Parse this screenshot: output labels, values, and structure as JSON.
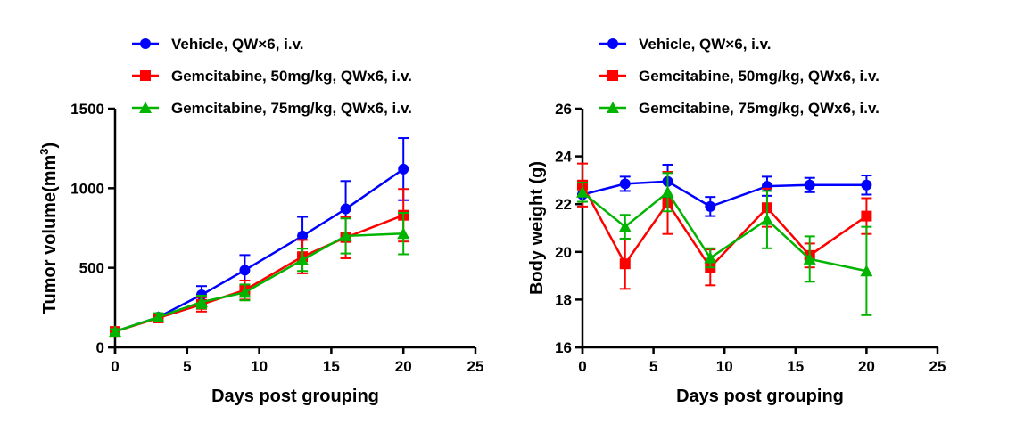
{
  "chart_data": [
    {
      "type": "line",
      "xlabel": "Days post grouping",
      "ylabel": "Tumor volume(mm",
      "ylabel_sup": "3",
      "ylabel_close": ")",
      "xlim": [
        0,
        25
      ],
      "ylim": [
        0,
        1500
      ],
      "xticks": [
        "0",
        "5",
        "10",
        "15",
        "20",
        "25"
      ],
      "yticks": [
        "0",
        "500",
        "1000",
        "1500"
      ],
      "x": [
        0,
        3,
        6,
        9,
        13,
        16,
        20
      ],
      "series": [
        {
          "name": "Vehicle, QW×6, i.v.",
          "color": "#0000ff",
          "marker": "circle",
          "values": [
            100,
            190,
            330,
            485,
            700,
            870,
            1120
          ],
          "error": [
            15,
            20,
            55,
            95,
            120,
            175,
            195
          ]
        },
        {
          "name": "Gemcitabine, 50mg/kg, QWx6, i.v.",
          "color": "#ff0000",
          "marker": "square",
          "values": [
            100,
            185,
            270,
            360,
            570,
            690,
            830
          ],
          "error": [
            15,
            20,
            45,
            60,
            105,
            130,
            165
          ]
        },
        {
          "name": "Gemcitabine, 75mg/kg, QWx6, i.v.",
          "color": "#00b400",
          "marker": "triangle",
          "values": [
            100,
            190,
            285,
            345,
            550,
            700,
            715
          ],
          "error": [
            15,
            25,
            40,
            50,
            70,
            110,
            130
          ]
        }
      ]
    },
    {
      "type": "line",
      "xlabel": "Days post grouping",
      "ylabel": "Body weight (g)",
      "xlim": [
        0,
        25
      ],
      "ylim": [
        16,
        26
      ],
      "xticks": [
        "0",
        "5",
        "10",
        "15",
        "20",
        "25"
      ],
      "yticks": [
        "16",
        "18",
        "20",
        "22",
        "24",
        "26"
      ],
      "x": [
        0,
        3,
        6,
        9,
        13,
        16,
        20
      ],
      "series": [
        {
          "name": "Vehicle, QW×6, i.v.",
          "color": "#0000ff",
          "marker": "circle",
          "values": [
            22.4,
            22.85,
            22.95,
            21.9,
            22.75,
            22.8,
            22.8
          ],
          "error": [
            0.3,
            0.3,
            0.7,
            0.4,
            0.4,
            0.3,
            0.4
          ]
        },
        {
          "name": "Gemcitabine, 50mg/kg, QWx6, i.v.",
          "color": "#ff0000",
          "marker": "square",
          "values": [
            22.8,
            19.5,
            22.05,
            19.35,
            21.85,
            19.85,
            21.5
          ],
          "error": [
            0.9,
            1.05,
            1.3,
            0.75,
            0.8,
            0.5,
            0.75
          ]
        },
        {
          "name": "Gemcitabine, 75mg/kg, QWx6, i.v.",
          "color": "#00b400",
          "marker": "triangle",
          "values": [
            22.5,
            21.05,
            22.5,
            19.75,
            21.35,
            19.7,
            19.2
          ],
          "error": [
            0.4,
            0.5,
            0.8,
            0.4,
            1.2,
            0.95,
            1.85
          ]
        }
      ]
    }
  ]
}
